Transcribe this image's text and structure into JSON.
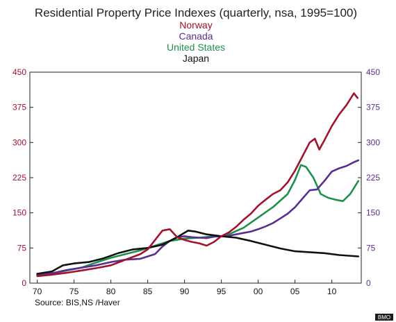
{
  "chart_data": {
    "type": "line",
    "title": "Residential Property Price Indexes  (quarterly, nsa, 1995=100)",
    "xlabel": "",
    "ylabel": "",
    "xlim": [
      1969,
      2014
    ],
    "ylim": [
      0,
      450
    ],
    "x_ticks": [
      1970,
      1975,
      1980,
      1985,
      1990,
      1995,
      2000,
      2005,
      2010
    ],
    "x_tick_labels": [
      "70",
      "75",
      "80",
      "85",
      "90",
      "95",
      "00",
      "05",
      "10"
    ],
    "y_ticks": [
      0,
      75,
      150,
      225,
      300,
      375,
      450
    ],
    "y_tick_labels": [
      "0",
      "75",
      "150",
      "225",
      "300",
      "375",
      "450"
    ],
    "grid": false,
    "legend_placement": "top-center",
    "source": "Source:  BIS,NS /Haver",
    "badge": "BMO",
    "colors": {
      "left_axis": "#a0122e",
      "right_axis": "#5b2d91"
    },
    "series": [
      {
        "name": "Norway",
        "color": "#a0122e",
        "x": [
          1970,
          1972,
          1974,
          1976,
          1978,
          1980,
          1982,
          1984,
          1985,
          1986,
          1987,
          1988,
          1989,
          1990,
          1991,
          1992,
          1993,
          1994,
          1995,
          1996,
          1997,
          1998,
          1999,
          2000,
          2001,
          2002,
          2003,
          2004,
          2005,
          2006,
          2007,
          2007.7,
          2008.3,
          2009,
          2010,
          2011,
          2012,
          2013,
          2013.5
        ],
        "y": [
          15,
          18,
          22,
          27,
          32,
          38,
          50,
          62,
          72,
          92,
          112,
          115,
          98,
          92,
          88,
          85,
          80,
          88,
          100,
          108,
          120,
          135,
          148,
          165,
          178,
          190,
          198,
          215,
          240,
          270,
          300,
          308,
          285,
          305,
          335,
          360,
          380,
          405,
          395
        ]
      },
      {
        "name": "Canada",
        "color": "#5b2d91",
        "x": [
          1970,
          1972,
          1974,
          1976,
          1978,
          1980,
          1982,
          1984,
          1986,
          1987,
          1988,
          1989,
          1990,
          1991,
          1992,
          1993,
          1994,
          1995,
          1996,
          1997,
          1998,
          1999,
          2000,
          2001,
          2002,
          2003,
          2004,
          2005,
          2006,
          2007,
          2008,
          2009,
          2010,
          2011,
          2012,
          2013,
          2013.6
        ],
        "y": [
          18,
          21,
          28,
          33,
          38,
          45,
          50,
          52,
          62,
          78,
          90,
          98,
          100,
          98,
          97,
          96,
          99,
          100,
          101,
          104,
          107,
          110,
          115,
          121,
          128,
          138,
          148,
          162,
          180,
          198,
          200,
          218,
          238,
          245,
          250,
          258,
          262
        ]
      },
      {
        "name": "United States",
        "color": "#1f8f4a",
        "x": [
          1970,
          1972,
          1974,
          1976,
          1978,
          1980,
          1982,
          1984,
          1986,
          1988,
          1990,
          1992,
          1994,
          1995,
          1996,
          1998,
          2000,
          2002,
          2004,
          2005,
          2005.8,
          2006.5,
          2007.5,
          2008.5,
          2009.5,
          2010.5,
          2011.5,
          2012.5,
          2013.6
        ],
        "y": [
          17,
          21,
          27,
          33,
          44,
          54,
          62,
          70,
          80,
          90,
          95,
          97,
          100,
          100,
          104,
          118,
          140,
          162,
          190,
          220,
          252,
          248,
          225,
          190,
          182,
          178,
          175,
          190,
          218
        ]
      },
      {
        "name": "Japan",
        "color": "#111111",
        "x": [
          1970,
          1972,
          1973.5,
          1975,
          1977,
          1979,
          1981,
          1983,
          1985,
          1987,
          1989,
          1990.5,
          1991.5,
          1993,
          1995,
          1997,
          1999,
          2001,
          2003,
          2005,
          2007,
          2009,
          2011,
          2013.6
        ],
        "y": [
          20,
          25,
          38,
          42,
          45,
          53,
          64,
          72,
          75,
          82,
          98,
          112,
          110,
          104,
          100,
          97,
          90,
          82,
          74,
          68,
          66,
          64,
          60,
          57
        ]
      }
    ]
  }
}
